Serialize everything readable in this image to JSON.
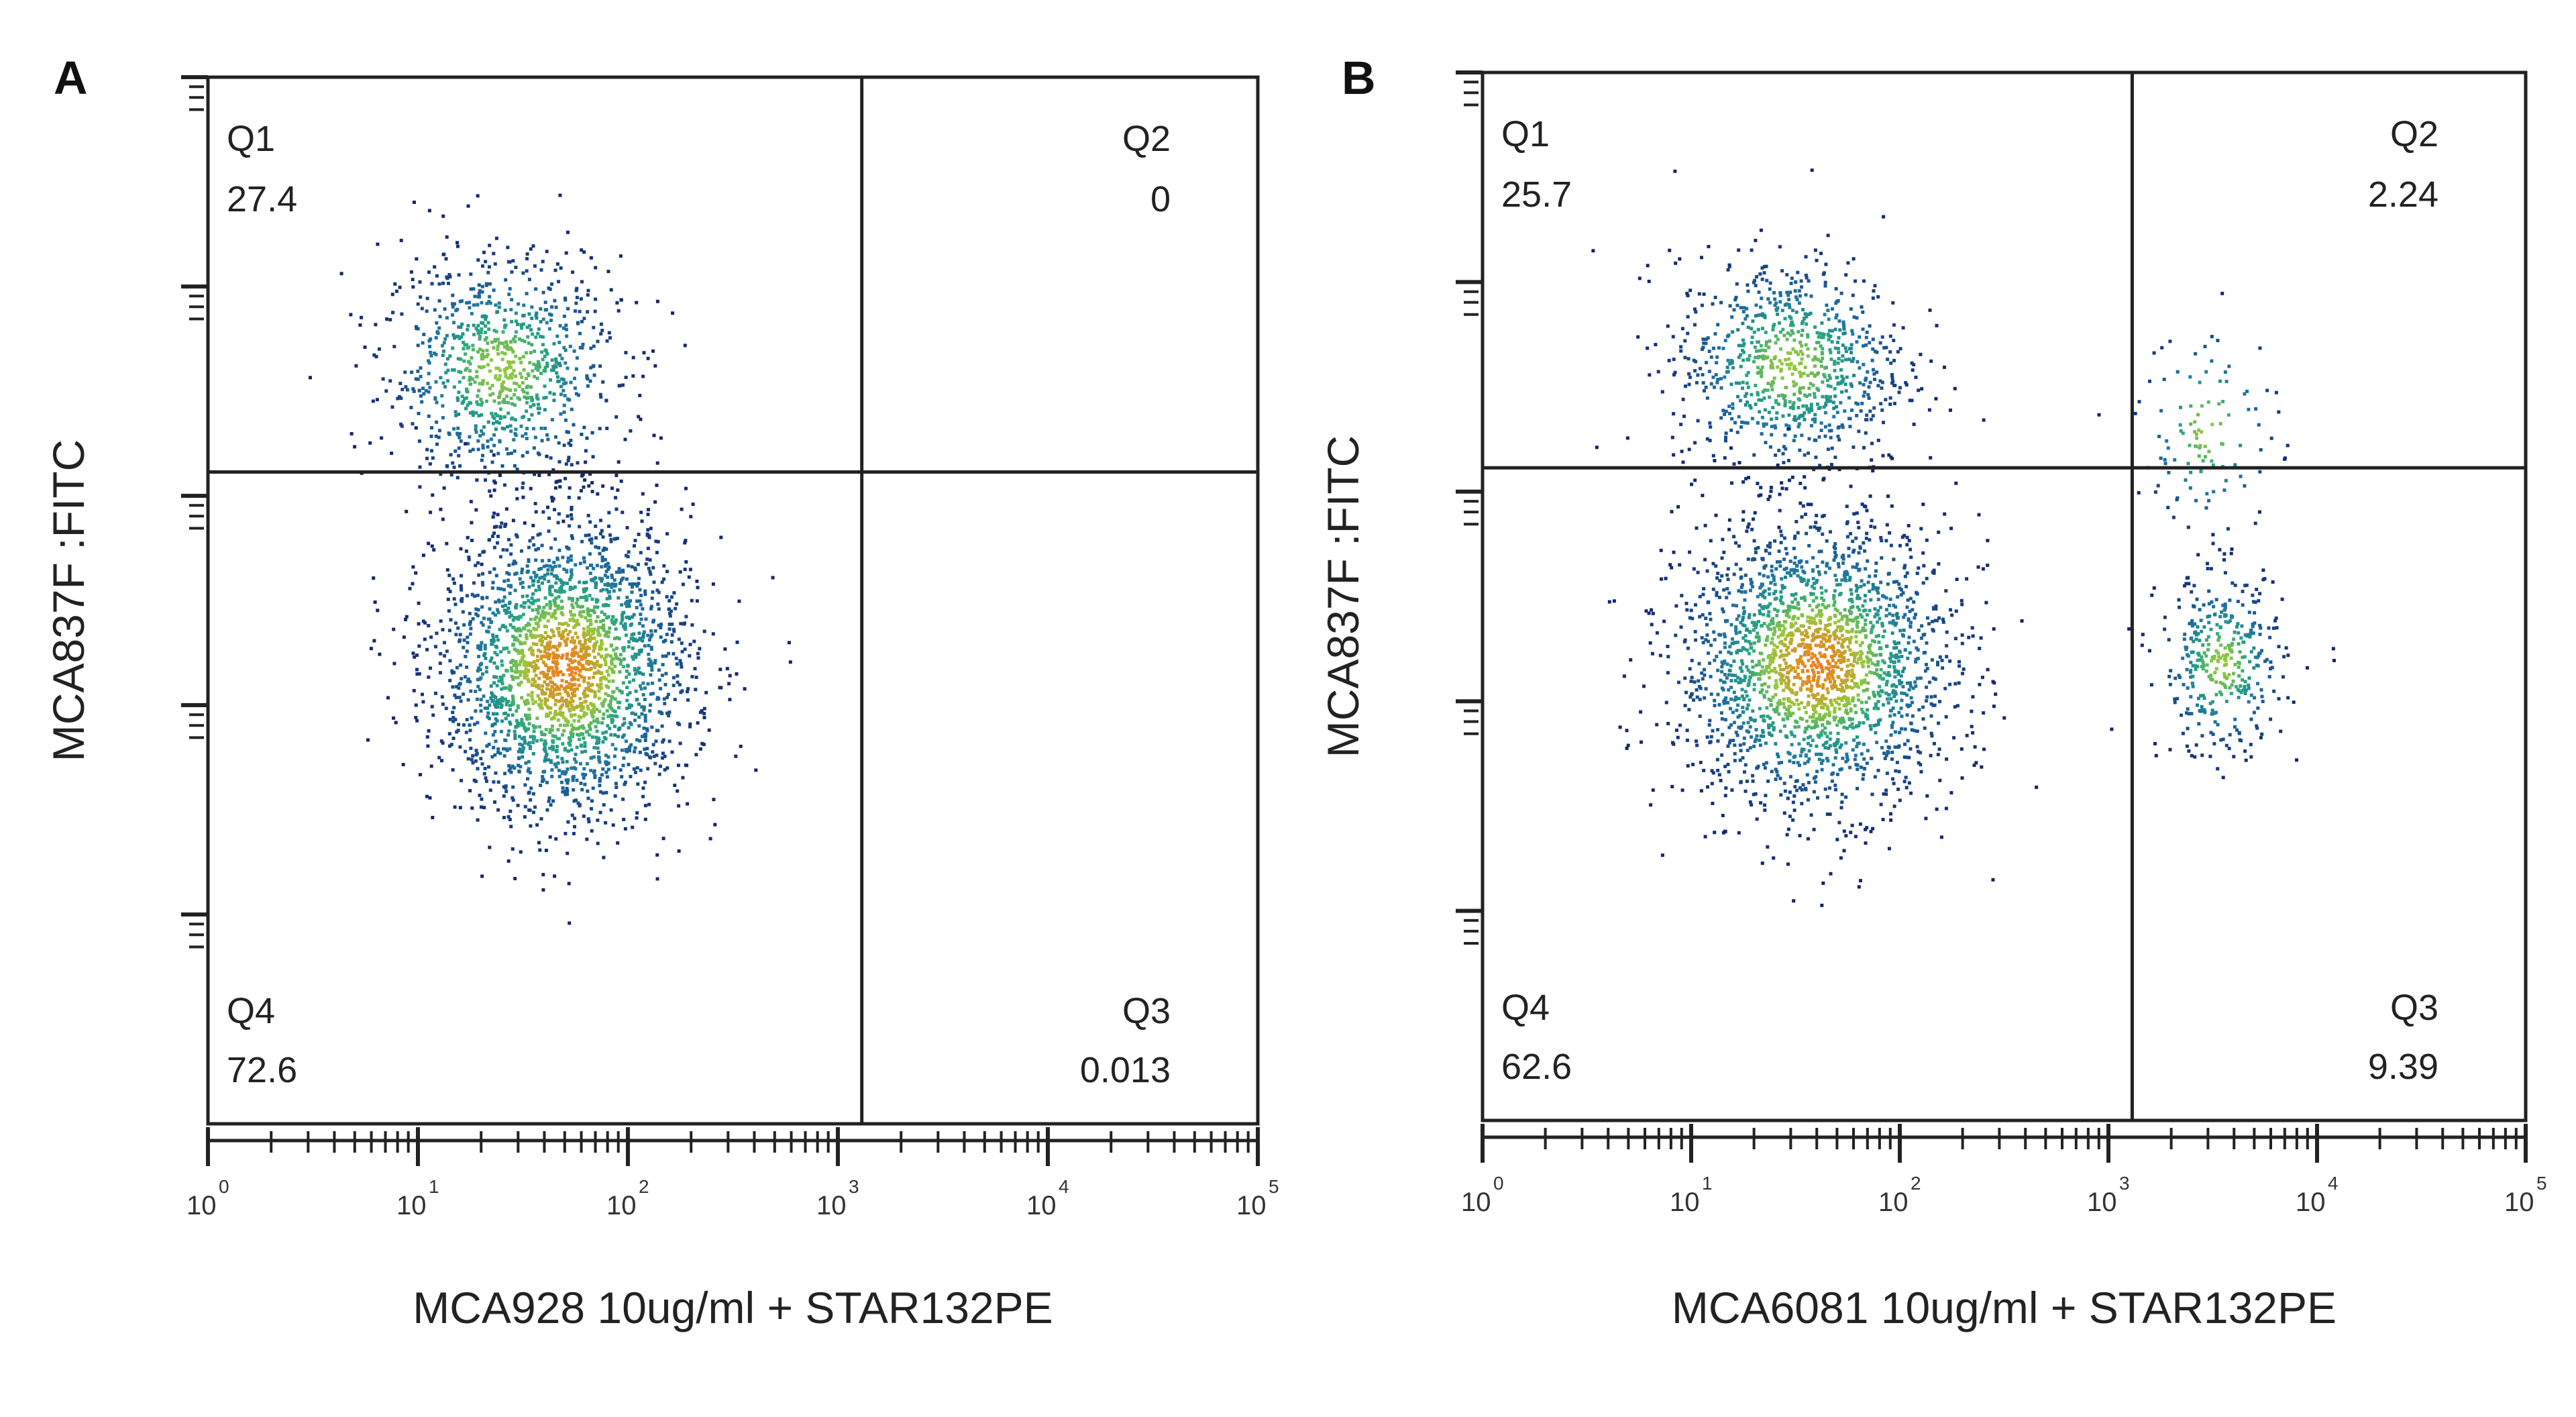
{
  "chart_data": [
    {
      "type": "scatter",
      "panel_label": "A",
      "xlabel": "MCA928 10ug/ml + STAR132PE",
      "ylabel": "MCA837F :FITC",
      "x_scale": "log",
      "xlim": [
        1,
        100000
      ],
      "x_ticks": [
        {
          "base": "10",
          "exp": "0"
        },
        {
          "base": "10",
          "exp": "1"
        },
        {
          "base": "10",
          "exp": "2"
        },
        {
          "base": "10",
          "exp": "3"
        },
        {
          "base": "10",
          "exp": "4"
        },
        {
          "base": "10",
          "exp": "5"
        }
      ],
      "y_scale": "log",
      "ylim": [
        1,
        100000
      ],
      "gate": {
        "x": 1300,
        "y": 1300
      },
      "quadrants": [
        {
          "name": "Q1",
          "value": "27.4",
          "pos": "top-left"
        },
        {
          "name": "Q2",
          "value": "0",
          "pos": "top-right"
        },
        {
          "name": "Q3",
          "value": "0.013",
          "pos": "bottom-right"
        },
        {
          "name": "Q4",
          "value": "72.6",
          "pos": "bottom-left"
        }
      ],
      "populations": [
        {
          "cx": 25,
          "cy": 4000,
          "sx": 0.28,
          "sy": 0.28,
          "n": 900
        },
        {
          "cx": 50,
          "cy": 150,
          "sx": 0.3,
          "sy": 0.36,
          "n": 2400
        }
      ]
    },
    {
      "type": "scatter",
      "panel_label": "B",
      "xlabel": "MCA6081 10ug/ml + STAR132PE",
      "ylabel": "MCA837F :FITC",
      "x_scale": "log",
      "xlim": [
        1,
        100000
      ],
      "x_ticks": [
        {
          "base": "10",
          "exp": "0"
        },
        {
          "base": "10",
          "exp": "1"
        },
        {
          "base": "10",
          "exp": "2"
        },
        {
          "base": "10",
          "exp": "3"
        },
        {
          "base": "10",
          "exp": "4"
        },
        {
          "base": "10",
          "exp": "5"
        }
      ],
      "y_scale": "log",
      "ylim": [
        1,
        100000
      ],
      "gate": {
        "x": 1300,
        "y": 1300
      },
      "quadrants": [
        {
          "name": "Q1",
          "value": "25.7",
          "pos": "top-left"
        },
        {
          "name": "Q2",
          "value": "2.24",
          "pos": "top-right"
        },
        {
          "name": "Q3",
          "value": "9.39",
          "pos": "bottom-right"
        },
        {
          "name": "Q4",
          "value": "62.6",
          "pos": "bottom-left"
        }
      ],
      "populations": [
        {
          "cx": 30,
          "cy": 4000,
          "sx": 0.28,
          "sy": 0.26,
          "n": 850
        },
        {
          "cx": 40,
          "cy": 150,
          "sx": 0.33,
          "sy": 0.34,
          "n": 2200
        },
        {
          "cx": 3500,
          "cy": 150,
          "sx": 0.15,
          "sy": 0.22,
          "n": 380
        },
        {
          "cx": 3000,
          "cy": 2000,
          "sx": 0.17,
          "sy": 0.25,
          "n": 110
        }
      ]
    }
  ],
  "colors": {
    "axes": "#222222",
    "density_low": "#0d1f6b",
    "density_mid": "#2aa37f",
    "density_high": "#e07a1a"
  }
}
